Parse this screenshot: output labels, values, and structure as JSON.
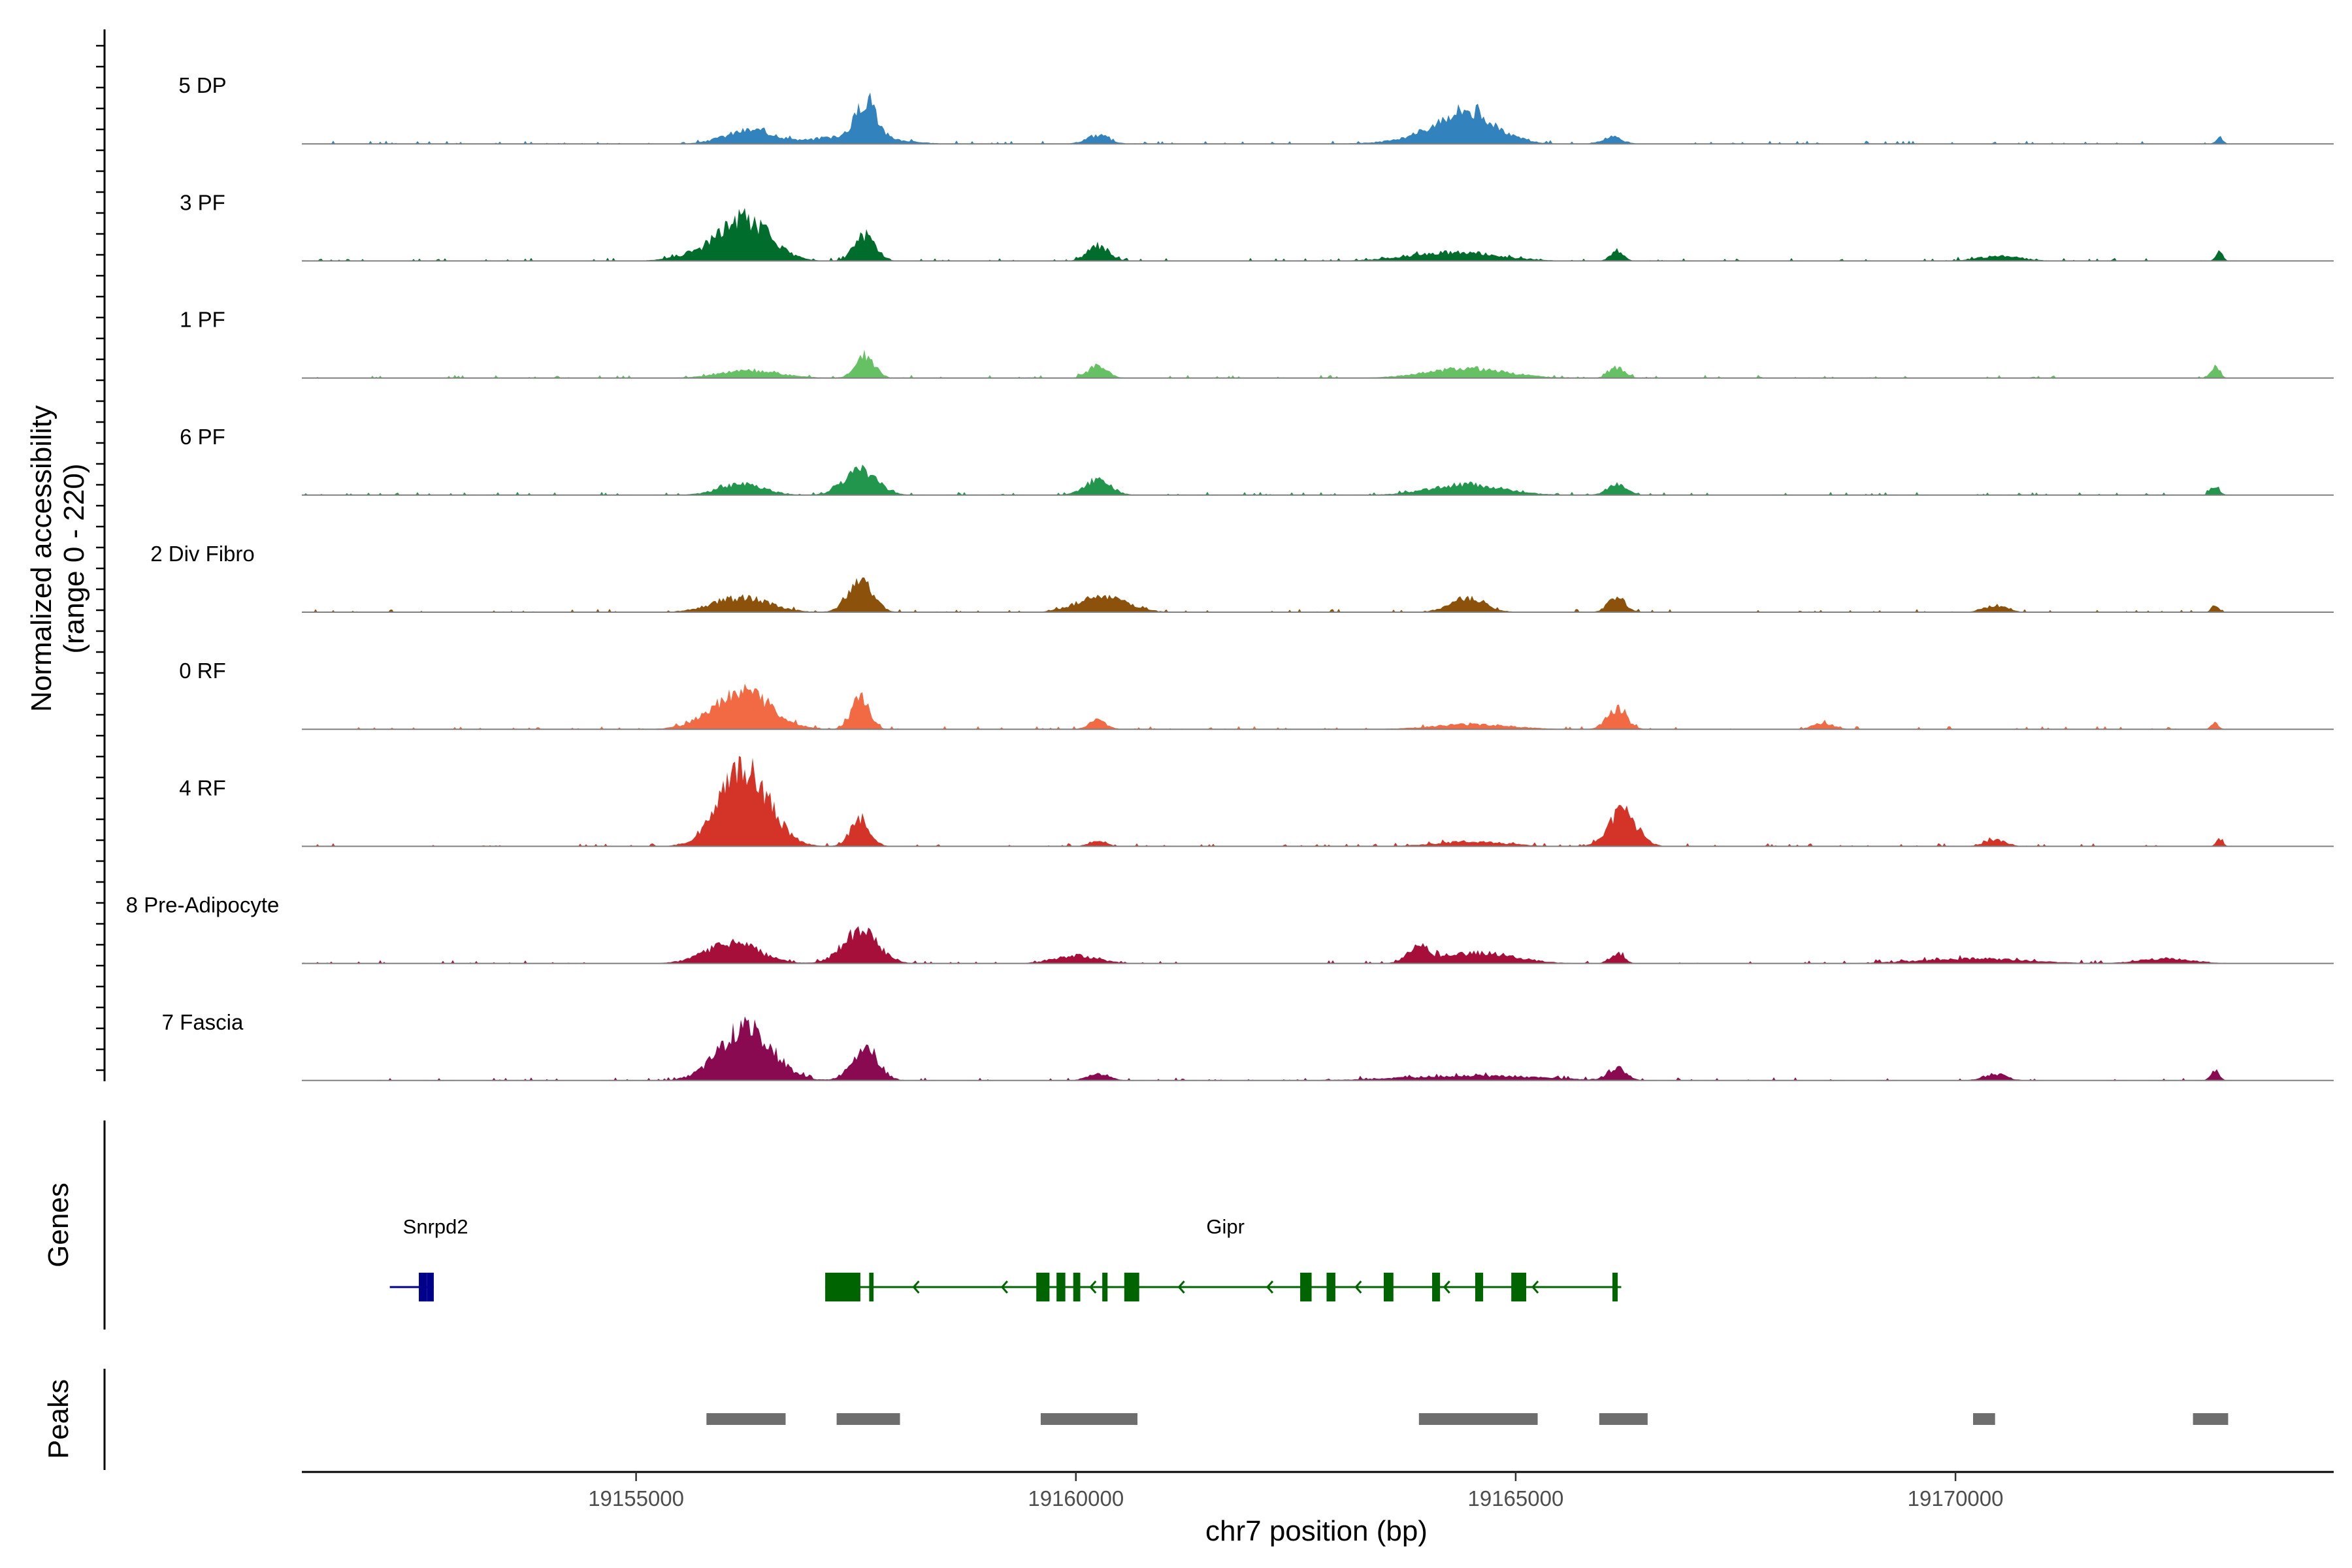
{
  "chart_data": {
    "type": "area",
    "title": "",
    "ylabel": "Normalized accessibility",
    "ylabel_range": "(range 0 - 220)",
    "ylim": [
      0,
      220
    ],
    "xlabel": "chr7 position (bp)",
    "xlim": [
      19151200,
      19174300
    ],
    "x_ticks": [
      19155000,
      19160000,
      19165000,
      19170000
    ],
    "x_tick_labels": [
      "19155000",
      "19160000",
      "19165000",
      "19170000"
    ],
    "tracks_end": 19173100,
    "tracks": [
      {
        "name": "5 DP",
        "color": "#3182bd",
        "peaks": [
          [
            19156300,
            28,
            280
          ],
          [
            19157620,
            75,
            110
          ],
          [
            19157500,
            18,
            400
          ],
          [
            19160250,
            18,
            130
          ],
          [
            19164440,
            58,
            320
          ],
          [
            19164200,
            12,
            500
          ],
          [
            19166100,
            12,
            120
          ],
          [
            19173000,
            14,
            40
          ]
        ]
      },
      {
        "name": "3 PF",
        "color": "#006d2c",
        "peaks": [
          [
            19156250,
            70,
            280
          ],
          [
            19156000,
            20,
            380
          ],
          [
            19157600,
            52,
            120
          ],
          [
            19160250,
            32,
            120
          ],
          [
            19164300,
            18,
            500
          ],
          [
            19166150,
            22,
            70
          ],
          [
            19170500,
            10,
            250
          ],
          [
            19173000,
            18,
            40
          ]
        ]
      },
      {
        "name": "1 PF",
        "color": "#66c164",
        "peaks": [
          [
            19156300,
            15,
            350
          ],
          [
            19157600,
            45,
            110
          ],
          [
            19160250,
            25,
            110
          ],
          [
            19164450,
            20,
            450
          ],
          [
            19166150,
            22,
            90
          ],
          [
            19172950,
            22,
            50
          ]
        ]
      },
      {
        "name": "6 PF",
        "color": "#21964c",
        "peaks": [
          [
            19156200,
            22,
            260
          ],
          [
            19157550,
            50,
            190
          ],
          [
            19160250,
            30,
            150
          ],
          [
            19164450,
            22,
            420
          ],
          [
            19166150,
            22,
            110
          ],
          [
            19172950,
            20,
            50
          ]
        ]
      },
      {
        "name": "2 Div Fibro",
        "color": "#8c510a",
        "peaks": [
          [
            19156200,
            30,
            320
          ],
          [
            19157550,
            68,
            140
          ],
          [
            19160300,
            32,
            280
          ],
          [
            19164450,
            28,
            200
          ],
          [
            19166150,
            30,
            100
          ],
          [
            19170450,
            14,
            130
          ],
          [
            19172950,
            14,
            40
          ]
        ]
      },
      {
        "name": "0 RF",
        "color": "#f16a44",
        "peaks": [
          [
            19156200,
            78,
            330
          ],
          [
            19157550,
            65,
            100
          ],
          [
            19160250,
            18,
            100
          ],
          [
            19164500,
            10,
            450
          ],
          [
            19166150,
            42,
            110
          ],
          [
            19168500,
            12,
            120
          ],
          [
            19172950,
            14,
            40
          ]
        ]
      },
      {
        "name": "4 RF",
        "color": "#d33427",
        "peaks": [
          [
            19156230,
            155,
            280
          ],
          [
            19157550,
            55,
            110
          ],
          [
            19160250,
            12,
            100
          ],
          [
            19164500,
            10,
            400
          ],
          [
            19166220,
            70,
            160
          ],
          [
            19170450,
            14,
            120
          ],
          [
            19173000,
            14,
            40
          ]
        ]
      },
      {
        "name": "8 Pre-Adipocyte",
        "color": "#a50f3a",
        "peaks": [
          [
            19156100,
            42,
            300
          ],
          [
            19157550,
            65,
            200
          ],
          [
            19160000,
            16,
            250
          ],
          [
            19163900,
            30,
            120
          ],
          [
            19164600,
            22,
            400
          ],
          [
            19166150,
            20,
            80
          ],
          [
            19170200,
            10,
            600
          ],
          [
            19172400,
            10,
            300
          ]
        ]
      },
      {
        "name": "7 Fascia",
        "color": "#8a0a52",
        "peaks": [
          [
            19156250,
            105,
            300
          ],
          [
            19157600,
            68,
            150
          ],
          [
            19160250,
            15,
            120
          ],
          [
            19164500,
            10,
            800
          ],
          [
            19166150,
            25,
            100
          ],
          [
            19170450,
            14,
            130
          ],
          [
            19172950,
            18,
            50
          ]
        ]
      }
    ],
    "genes_title": "Genes",
    "genes": [
      {
        "name": "Snrpd2",
        "color": "#00008b",
        "strand": "-",
        "start": 19152200,
        "end": 19152700,
        "exons": [
          [
            19152620,
            19152700
          ],
          [
            19152530,
            19152620
          ]
        ]
      },
      {
        "name": "Gipr",
        "color": "#006400",
        "strand": "-",
        "start": 19157150,
        "end": 19166200,
        "exons": [
          [
            19157150,
            19157550
          ],
          [
            19157650,
            19157700
          ],
          [
            19159550,
            19159700
          ],
          [
            19159780,
            19159880
          ],
          [
            19159970,
            19160050
          ],
          [
            19160300,
            19160360
          ],
          [
            19160550,
            19160720
          ],
          [
            19162550,
            19162680
          ],
          [
            19162850,
            19162950
          ],
          [
            19163500,
            19163610
          ],
          [
            19164050,
            19164140
          ],
          [
            19164540,
            19164630
          ],
          [
            19164950,
            19165120
          ],
          [
            19166100,
            19166160
          ]
        ]
      }
    ],
    "peaks_title": "Peaks",
    "peaks": [
      [
        19155800,
        19156700
      ],
      [
        19157280,
        19158000
      ],
      [
        19159600,
        19160700
      ],
      [
        19163900,
        19165250
      ],
      [
        19165950,
        19166500
      ],
      [
        19170200,
        19170450
      ],
      [
        19172700,
        19173100
      ]
    ]
  }
}
